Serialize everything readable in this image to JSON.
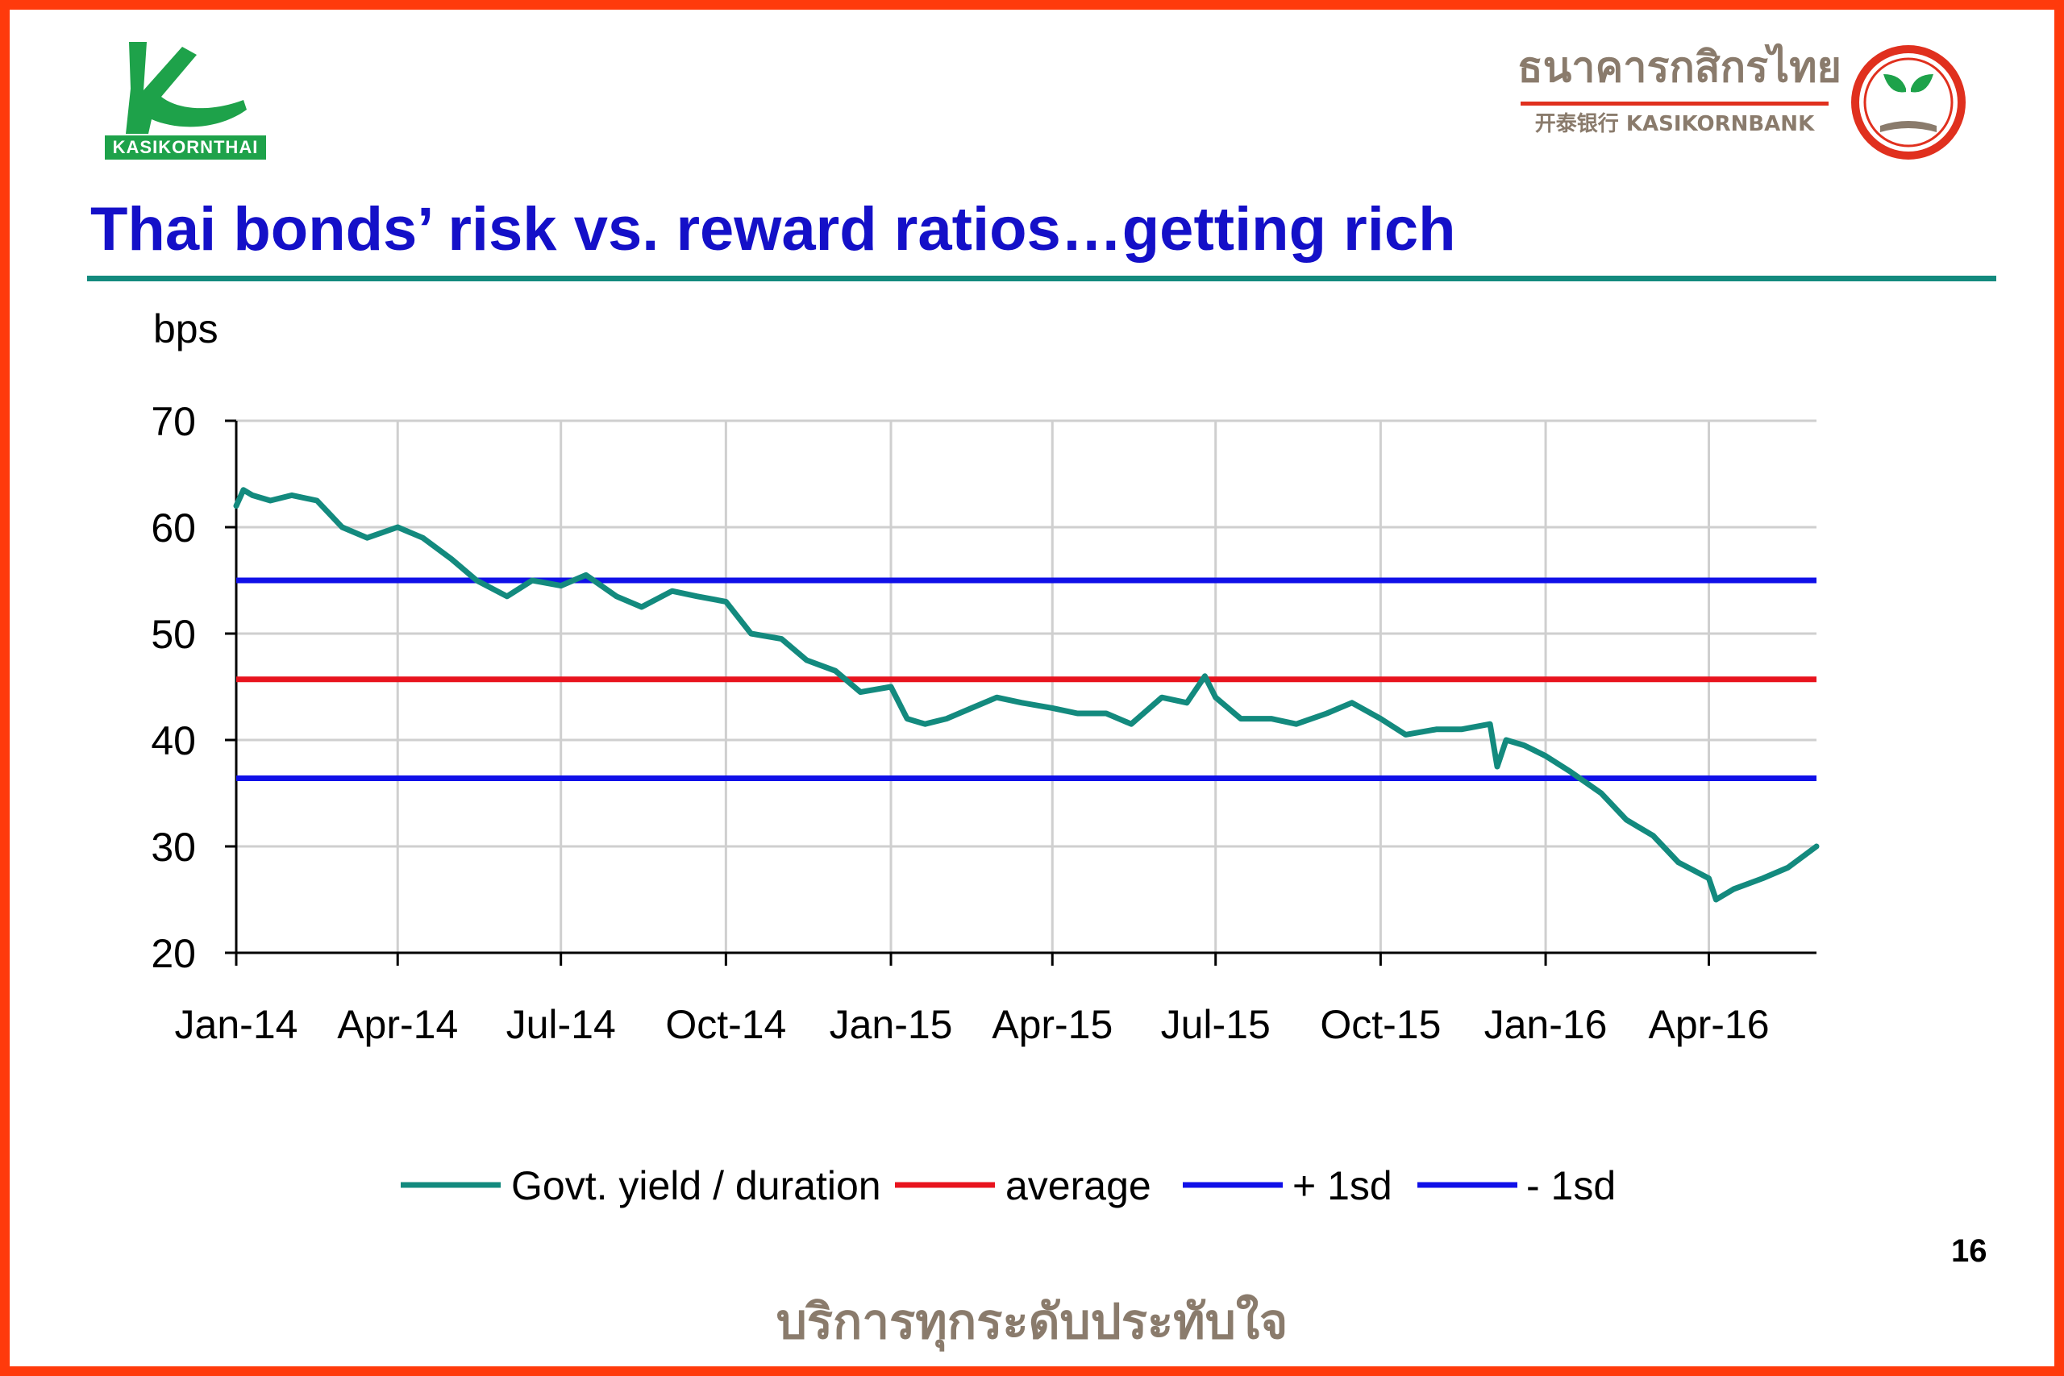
{
  "logos": {
    "left_badge": "KASIKORNTHAI",
    "right_thai": "ธนาคารกสิกรไทย",
    "right_english": "开泰银行 KASIKORNBANK"
  },
  "colors": {
    "frame": "#ff3a0c",
    "title": "#1410c8",
    "rule": "#138a7e",
    "series": "#138a7e",
    "average": "#e8141e",
    "sd": "#1010e8",
    "logo_green": "#1ea24a",
    "logo_red": "#e0301e",
    "footer": "#8a7b6c"
  },
  "icons": {
    "left_logo": "kasikornthai-logo-icon",
    "right_logo": "kasikornbank-emblem-icon"
  },
  "slide": {
    "title": "Thai bonds’ risk vs. reward ratios…getting rich",
    "page_number": "16",
    "footer": "บริการทุกระดับประทับใจ"
  },
  "chart_data": {
    "type": "line",
    "title": "",
    "ylabel": "bps",
    "xlabel": "",
    "ylim": [
      20,
      70
    ],
    "yticks": [
      70,
      60,
      50,
      40,
      30,
      20
    ],
    "xlim": [
      "2014-01-01",
      "2016-05-31"
    ],
    "xticks": [
      {
        "date": "2014-01-01",
        "label": "Jan-14"
      },
      {
        "date": "2014-04-01",
        "label": "Apr-14"
      },
      {
        "date": "2014-07-01",
        "label": "Jul-14"
      },
      {
        "date": "2014-10-01",
        "label": "Oct-14"
      },
      {
        "date": "2015-01-01",
        "label": "Jan-15"
      },
      {
        "date": "2015-04-01",
        "label": "Apr-15"
      },
      {
        "date": "2015-07-01",
        "label": "Jul-15"
      },
      {
        "date": "2015-10-01",
        "label": "Oct-15"
      },
      {
        "date": "2016-01-01",
        "label": "Jan-16"
      },
      {
        "date": "2016-04-01",
        "label": "Apr-16"
      }
    ],
    "grid": true,
    "legend_position": "bottom",
    "series": [
      {
        "name": "Govt. yield / duration",
        "x": [
          "2014-01-01",
          "2014-01-05",
          "2014-01-10",
          "2014-01-20",
          "2014-02-01",
          "2014-02-15",
          "2014-03-01",
          "2014-03-15",
          "2014-04-01",
          "2014-04-15",
          "2014-05-01",
          "2014-05-15",
          "2014-06-01",
          "2014-06-15",
          "2014-07-01",
          "2014-07-15",
          "2014-08-01",
          "2014-08-15",
          "2014-09-01",
          "2014-09-15",
          "2014-10-01",
          "2014-10-15",
          "2014-11-01",
          "2014-11-15",
          "2014-12-01",
          "2014-12-15",
          "2015-01-01",
          "2015-01-10",
          "2015-01-20",
          "2015-02-01",
          "2015-02-15",
          "2015-03-01",
          "2015-03-15",
          "2015-04-01",
          "2015-04-15",
          "2015-05-01",
          "2015-05-15",
          "2015-06-01",
          "2015-06-15",
          "2015-06-25",
          "2015-07-01",
          "2015-07-15",
          "2015-08-01",
          "2015-08-15",
          "2015-09-01",
          "2015-09-15",
          "2015-10-01",
          "2015-10-15",
          "2015-11-01",
          "2015-11-15",
          "2015-12-01",
          "2015-12-05",
          "2015-12-10",
          "2015-12-20",
          "2016-01-01",
          "2016-01-15",
          "2016-02-01",
          "2016-02-15",
          "2016-03-01",
          "2016-03-15",
          "2016-04-01",
          "2016-04-05",
          "2016-04-15",
          "2016-05-01",
          "2016-05-15",
          "2016-05-31"
        ],
        "values": [
          62,
          63.5,
          63,
          62.5,
          63,
          62.5,
          60,
          59,
          60,
          59,
          57,
          55,
          53.5,
          55,
          54.5,
          55.5,
          53.5,
          52.5,
          54,
          53.5,
          53,
          50,
          49.5,
          47.5,
          46.5,
          44.5,
          45,
          42,
          41.5,
          42,
          43,
          44,
          43.5,
          43,
          42.5,
          42.5,
          41.5,
          44,
          43.5,
          46,
          44,
          42,
          42,
          41.5,
          42.5,
          43.5,
          42,
          40.5,
          41,
          41,
          41.5,
          37.5,
          40,
          39.5,
          38.5,
          37,
          35,
          32.5,
          31,
          28.5,
          27,
          25,
          26,
          27,
          28,
          30
        ]
      },
      {
        "name": "average",
        "constant": 45.7
      },
      {
        "name": "+ 1sd",
        "constant": 55
      },
      {
        "name": "- 1sd",
        "constant": 36.4
      }
    ]
  }
}
